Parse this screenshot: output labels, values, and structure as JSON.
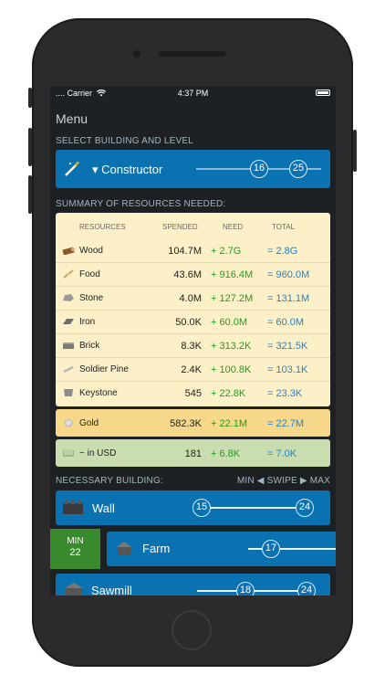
{
  "status_bar": {
    "carrier": ".... Carrier",
    "time": "4:37 PM"
  },
  "menu": {
    "title": "Menu"
  },
  "select_section": {
    "label": "SELECT BUILDING AND LEVEL"
  },
  "constructor": {
    "name": "▾ Constructor",
    "level_from": "16",
    "level_to": "25"
  },
  "summary_section": {
    "label": "SUMMARY OF RESOURCES NEEDED:"
  },
  "table": {
    "headers": {
      "resources": "RESOURCES",
      "spended": "SPENDED",
      "need": "NEED",
      "total": "TOTAL"
    },
    "rows": [
      {
        "name": "Wood",
        "spended": "104.7M",
        "need": "+ 2.7G",
        "total": "= 2.8G",
        "icon": "wood-icon"
      },
      {
        "name": "Food",
        "spended": "43.6M",
        "need": "+ 916.4M",
        "total": "= 960.0M",
        "icon": "food-icon"
      },
      {
        "name": "Stone",
        "spended": "4.0M",
        "need": "+ 127.2M",
        "total": "= 131.1M",
        "icon": "stone-icon"
      },
      {
        "name": "Iron",
        "spended": "50.0K",
        "need": "+ 60.0M",
        "total": "= 60.0M",
        "icon": "iron-icon"
      },
      {
        "name": "Brick",
        "spended": "8.3K",
        "need": "+ 313.2K",
        "total": "= 321.5K",
        "icon": "brick-icon"
      },
      {
        "name": "Soldier Pine",
        "spended": "2.4K",
        "need": "+ 100.8K",
        "total": "= 103.1K",
        "icon": "pine-icon"
      },
      {
        "name": "Keystone",
        "spended": "545",
        "need": "+ 22.8K",
        "total": "= 23.3K",
        "icon": "keystone-icon"
      }
    ]
  },
  "gold": {
    "name": "Gold",
    "spended": "582.3K",
    "need": "+ 22.1M",
    "total": "= 22.7M"
  },
  "usd": {
    "name": "~ in USD",
    "spended": "181",
    "need": "+ 6.8K",
    "total": "= 7.0K"
  },
  "necessary_section": {
    "label": "NECESSARY BUILDING:",
    "hint": "MIN ◀ SWIPE ▶ MAX"
  },
  "buildings": [
    {
      "name": "Wall",
      "from": "15",
      "to": "24"
    },
    {
      "name": "Farm",
      "from": "17"
    },
    {
      "name": "Sawmill",
      "from": "18",
      "to": "24"
    }
  ],
  "min_badge": {
    "label": "MIN",
    "value": "22"
  },
  "colors": {
    "accent": "#0b72b1",
    "need": "#1ea11e",
    "total": "#1b84d6",
    "table_bg": "#fcf0c8",
    "gold_bg": "#f7d88a",
    "usd_bg": "#c9ddb0",
    "min_bg": "#3a8a2e"
  }
}
